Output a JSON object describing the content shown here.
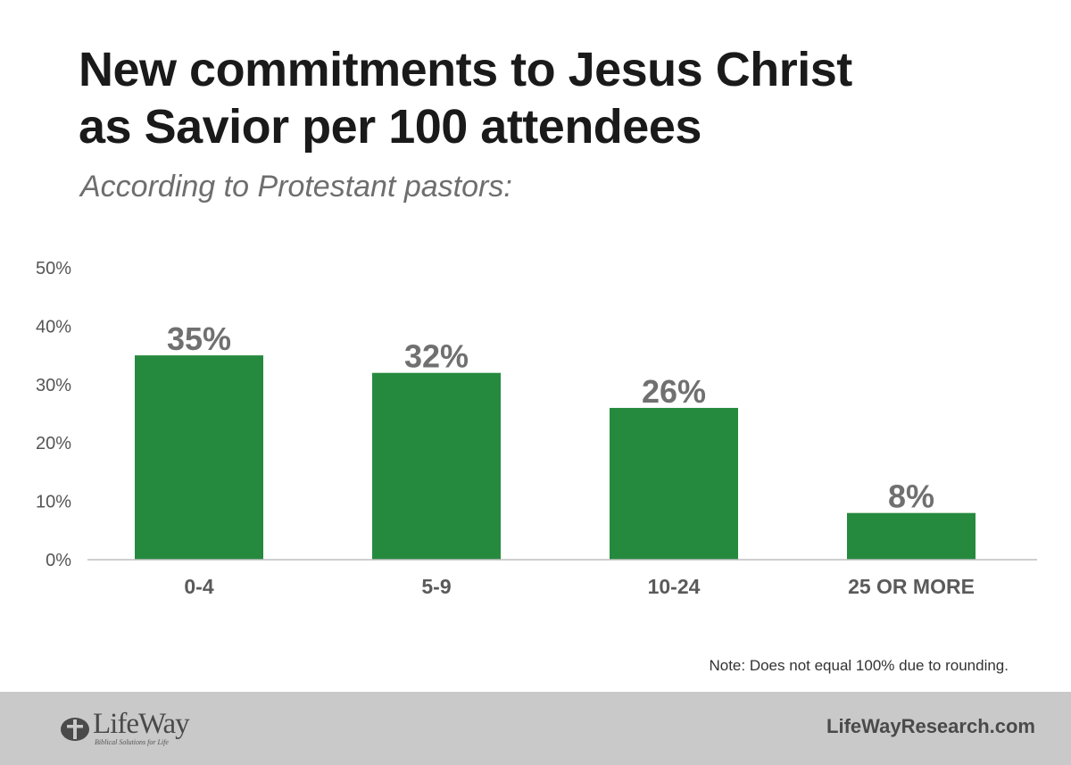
{
  "title_line1": "New commitments to Jesus Christ",
  "title_line2": "as Savior per 100 attendees",
  "subtitle": "According to Protestant pastors:",
  "note": "Note: Does not equal 100% due to rounding.",
  "footer": {
    "logo_text": "LifeWay",
    "logo_tagline": "Biblical Solutions for Life",
    "website": "LifeWayResearch.com"
  },
  "colors": {
    "bar": "#268a3e",
    "data_label": "#707070",
    "tick_label": "#555555",
    "category_label": "#5a5a5a",
    "footer_bg": "#c9c9c9"
  },
  "chart_data": {
    "type": "bar",
    "categories": [
      "0-4",
      "5-9",
      "10-24",
      "25 OR MORE"
    ],
    "values": [
      35,
      32,
      26,
      8
    ],
    "value_labels": [
      "35%",
      "32%",
      "26%",
      "8%"
    ],
    "ylim": [
      0,
      50
    ],
    "yticks": [
      0,
      10,
      20,
      30,
      40,
      50
    ],
    "ytick_labels": [
      "0%",
      "10%",
      "20%",
      "30%",
      "40%",
      "50%"
    ],
    "grid": false,
    "legend": "none"
  }
}
